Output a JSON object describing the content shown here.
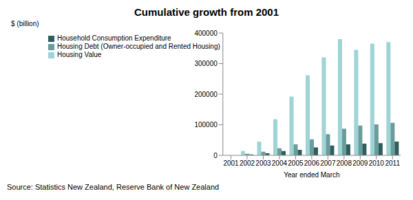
{
  "chart_data": {
    "type": "bar",
    "title": "Cumulative growth from 2001",
    "y_label": "$ (billion)",
    "x_label": "Year ended March",
    "annotations": [
      "Source: Statistics New Zealand, Reserve Bank of New Zealand"
    ],
    "categories": [
      "2001",
      "2002",
      "2003",
      "2004",
      "2005",
      "2006",
      "2007",
      "2008",
      "2009",
      "2010",
      "2011"
    ],
    "series": [
      {
        "name": "Housing Value",
        "color": "#9fd4d6",
        "values": [
          0,
          14000,
          45000,
          118000,
          192000,
          262000,
          320000,
          380000,
          345000,
          365000,
          370000
        ]
      },
      {
        "name": "Housing Debt  (Owner-occupied and Rented Housing)",
        "color": "#6b9b9b",
        "values": [
          0,
          5000,
          12000,
          23000,
          36000,
          52000,
          69000,
          87000,
          97000,
          101000,
          106000
        ]
      },
      {
        "name": "Household Consumption Expenditure",
        "color": "#2f5c5c",
        "values": [
          0,
          3000,
          7000,
          14000,
          18000,
          26000,
          32000,
          36000,
          38000,
          40000,
          45000
        ]
      }
    ],
    "ylim": [
      0,
      400000
    ],
    "yticks": [
      0,
      100000,
      200000,
      300000,
      400000
    ],
    "grid": false,
    "legend": "upper left"
  }
}
